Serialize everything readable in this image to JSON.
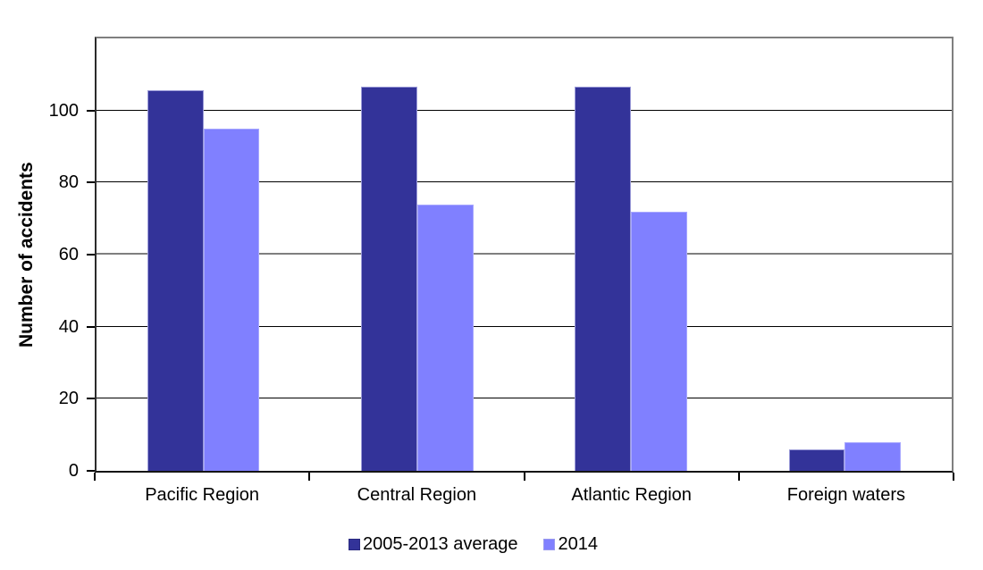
{
  "chart_data": {
    "type": "bar",
    "title": "",
    "ylabel": "Number of accidents",
    "xlabel": "",
    "categories": [
      "Pacific Region",
      "Central Region",
      "Atlantic Region",
      "Foreign waters"
    ],
    "series": [
      {
        "name": "2005-2013 average",
        "color": "#333399",
        "values": [
          105.7,
          106.5,
          106.7,
          6
        ]
      },
      {
        "name": "2014",
        "color": "#8080FF",
        "values": [
          95,
          74,
          72,
          8
        ]
      }
    ],
    "ylim": [
      0,
      120
    ],
    "yticks": [
      0,
      20,
      40,
      60,
      80,
      100
    ],
    "grid": "horizontal",
    "legend_position": "bottom"
  }
}
